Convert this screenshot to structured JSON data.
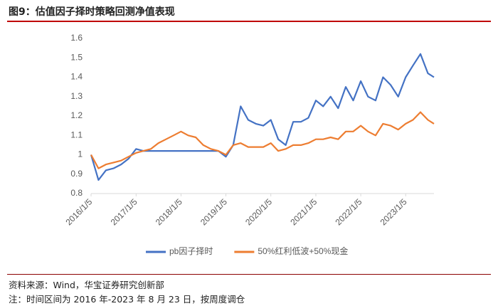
{
  "header": {
    "title": "图9：估值因子择时策略回测净值表现"
  },
  "chart_data": {
    "type": "line",
    "x": [
      "2016/1/5",
      "2016/3/5",
      "2016/5/5",
      "2016/7/5",
      "2016/9/5",
      "2016/11/5",
      "2017/1/5",
      "2017/3/5",
      "2017/5/5",
      "2017/7/5",
      "2017/9/5",
      "2017/11/5",
      "2018/1/5",
      "2018/3/5",
      "2018/5/5",
      "2018/7/5",
      "2018/9/5",
      "2018/11/5",
      "2019/1/5",
      "2019/3/5",
      "2019/5/5",
      "2019/7/5",
      "2019/9/5",
      "2019/11/5",
      "2020/1/5",
      "2020/3/5",
      "2020/5/5",
      "2020/7/5",
      "2020/9/5",
      "2020/11/5",
      "2021/1/5",
      "2021/3/5",
      "2021/5/5",
      "2021/7/5",
      "2021/9/5",
      "2021/11/5",
      "2022/1/5",
      "2022/3/5",
      "2022/5/5",
      "2022/7/5",
      "2022/9/5",
      "2022/11/5",
      "2023/1/5",
      "2023/3/5",
      "2023/5/5",
      "2023/7/5",
      "2023/8/23"
    ],
    "series": [
      {
        "name": "pb因子择时",
        "color": "#4472c4",
        "values": [
          1.0,
          0.87,
          0.92,
          0.93,
          0.95,
          0.98,
          1.03,
          1.02,
          1.02,
          1.02,
          1.02,
          1.02,
          1.02,
          1.02,
          1.02,
          1.02,
          1.02,
          1.02,
          0.99,
          1.05,
          1.25,
          1.18,
          1.16,
          1.15,
          1.18,
          1.08,
          1.05,
          1.17,
          1.17,
          1.19,
          1.28,
          1.25,
          1.3,
          1.24,
          1.35,
          1.28,
          1.38,
          1.3,
          1.28,
          1.4,
          1.36,
          1.3,
          1.4,
          1.46,
          1.52,
          1.42,
          1.4
        ]
      },
      {
        "name": "50%红利低波+50%现金",
        "color": "#ed7d31",
        "values": [
          1.0,
          0.93,
          0.95,
          0.96,
          0.97,
          0.99,
          1.01,
          1.02,
          1.03,
          1.06,
          1.08,
          1.1,
          1.12,
          1.1,
          1.09,
          1.05,
          1.03,
          1.02,
          1.0,
          1.05,
          1.06,
          1.04,
          1.04,
          1.04,
          1.06,
          1.02,
          1.03,
          1.05,
          1.05,
          1.06,
          1.08,
          1.08,
          1.09,
          1.08,
          1.12,
          1.12,
          1.15,
          1.12,
          1.1,
          1.16,
          1.15,
          1.13,
          1.16,
          1.18,
          1.22,
          1.18,
          1.16
        ]
      }
    ],
    "xlim": [
      "2016/1/5",
      "2023/8/23"
    ],
    "xticks": [
      "2016/1/5",
      "2017/1/5",
      "2018/1/5",
      "2019/1/5",
      "2020/1/5",
      "2021/1/5",
      "2022/1/5",
      "2023/1/5"
    ],
    "ylim": [
      0.8,
      1.6
    ],
    "yticks": [
      0.8,
      0.9,
      1,
      1.1,
      1.2,
      1.3,
      1.4,
      1.5,
      1.6
    ],
    "grid": false,
    "legend": "bottom"
  },
  "footer": {
    "source": "资料来源：Wind，华宝证券研究创新部",
    "note": "注：时间区间为 2016 年-2023 年 8 月 23 日，按周度调仓"
  }
}
